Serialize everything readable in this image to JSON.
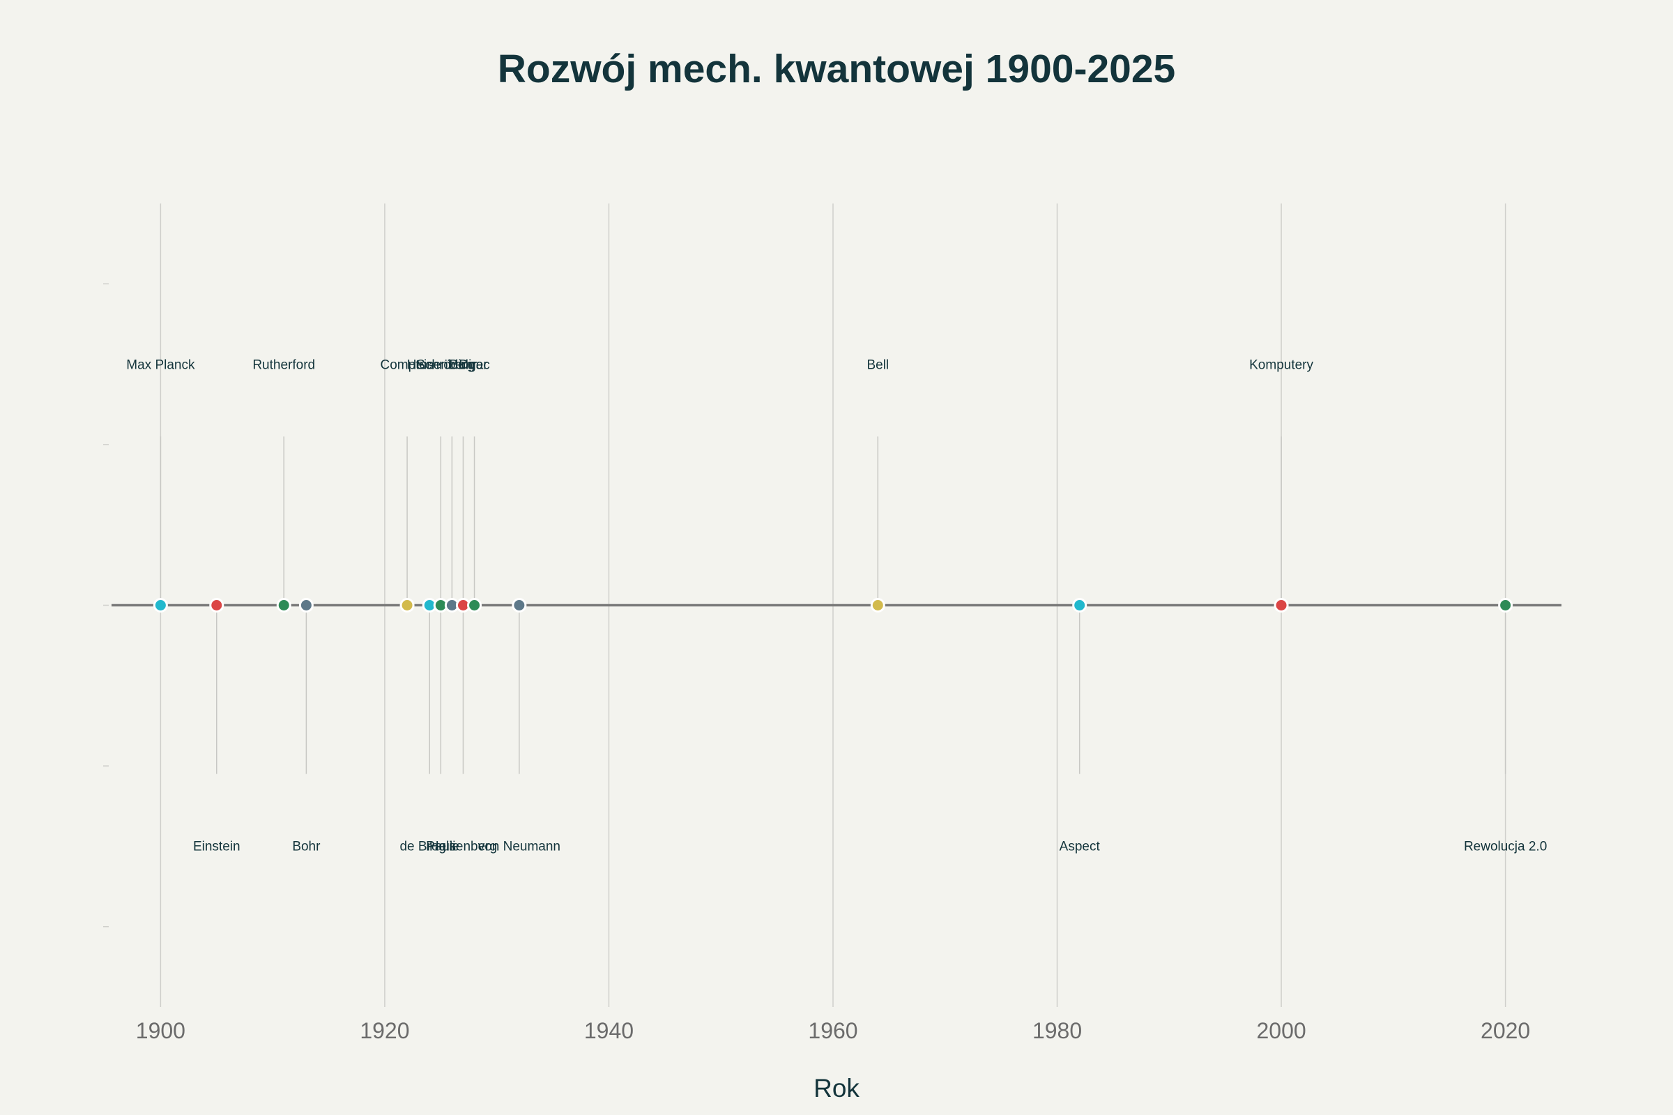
{
  "colors": {
    "background": "#F3F3EE",
    "text": "#13343B",
    "axis_line": "#7A7A7A",
    "grid": "#CFCFCB",
    "stem": "#C8C8C4",
    "tick_label": "#6B6B6B",
    "teal": "#21B8CD",
    "red": "#DB4545",
    "green": "#2E8B57",
    "slate": "#5D7889",
    "gold": "#D2BA4C"
  },
  "chart_data": {
    "type": "scatter",
    "title": "Rozwój mech. kwantowej 1900-2025",
    "xlabel": "Rok",
    "ylabel": "",
    "xlim": [
      1895,
      2025
    ],
    "ylim": [
      -2.5,
      2.5
    ],
    "xticks": [
      1900,
      1920,
      1940,
      1960,
      1980,
      2000,
      2020
    ],
    "grid": "vertical",
    "legend": "none",
    "baseline": 0,
    "events": [
      {
        "year": 1900,
        "label": "Max Planck",
        "level": 1.5,
        "color": "teal"
      },
      {
        "year": 1905,
        "label": "Einstein",
        "level": -1.5,
        "color": "red"
      },
      {
        "year": 1911,
        "label": "Rutherford",
        "level": 1.5,
        "color": "green"
      },
      {
        "year": 1913,
        "label": "Bohr",
        "level": -1.5,
        "color": "slate"
      },
      {
        "year": 1922,
        "label": "Compton",
        "level": 1.5,
        "color": "gold"
      },
      {
        "year": 1924,
        "label": "de Broglie",
        "level": -1.5,
        "color": "teal"
      },
      {
        "year": 1925,
        "label": "Heisenberg",
        "level": 1.5,
        "color": "green"
      },
      {
        "year": 1925,
        "label": "Pauli",
        "level": -1.5,
        "color": "green"
      },
      {
        "year": 1926,
        "label": "Schrödinger",
        "level": 1.5,
        "color": "slate"
      },
      {
        "year": 1927,
        "label": "Heisenberg",
        "level": -1.5,
        "color": "red"
      },
      {
        "year": 1927,
        "label": "Bohr",
        "level": 1.5,
        "color": "red"
      },
      {
        "year": 1928,
        "label": "Dirac",
        "level": 1.5,
        "color": "green"
      },
      {
        "year": 1932,
        "label": "von Neumann",
        "level": -1.5,
        "color": "slate"
      },
      {
        "year": 1964,
        "label": "Bell",
        "level": 1.5,
        "color": "gold"
      },
      {
        "year": 1982,
        "label": "Aspect",
        "level": -1.5,
        "color": "teal"
      },
      {
        "year": 2000,
        "label": "Komputery",
        "level": 1.5,
        "color": "red"
      },
      {
        "year": 2020,
        "label": "Rewolucja 2.0",
        "level": -1.5,
        "color": "green"
      }
    ]
  }
}
